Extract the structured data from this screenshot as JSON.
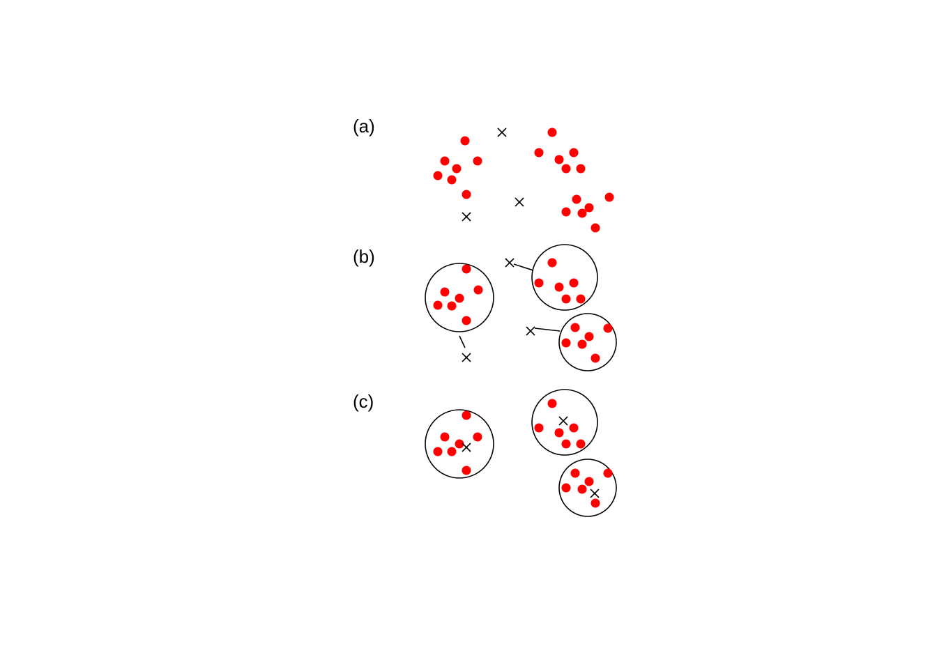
{
  "colors": {
    "point": "#ff0000",
    "center": "#000000",
    "background": "#ffffff"
  },
  "panels": [
    {
      "label": "(a)"
    },
    {
      "label": "(b)"
    },
    {
      "label": "(c)"
    }
  ]
}
